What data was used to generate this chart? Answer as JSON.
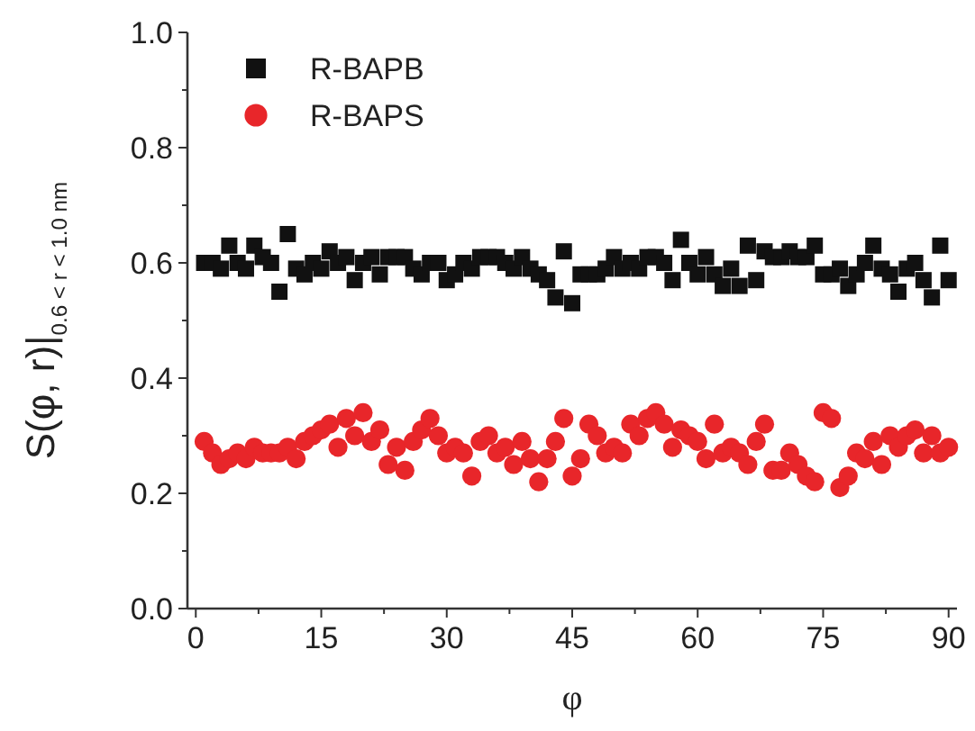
{
  "chart_data": {
    "type": "scatter",
    "xlabel": "φ",
    "ylabel": "S(φ, r)|$_{0.6 < r < 1.0 nm}$",
    "x": [
      1,
      2,
      3,
      4,
      5,
      6,
      7,
      8,
      9,
      10,
      11,
      12,
      13,
      14,
      15,
      16,
      17,
      18,
      19,
      20,
      21,
      22,
      23,
      24,
      25,
      26,
      27,
      28,
      29,
      30,
      31,
      32,
      33,
      34,
      35,
      36,
      37,
      38,
      39,
      40,
      41,
      42,
      43,
      44,
      45,
      46,
      47,
      48,
      49,
      50,
      51,
      52,
      53,
      54,
      55,
      56,
      57,
      58,
      59,
      60,
      61,
      62,
      63,
      64,
      65,
      66,
      67,
      68,
      69,
      70,
      71,
      72,
      73,
      74,
      75,
      76,
      77,
      78,
      79,
      80,
      81,
      82,
      83,
      84,
      85,
      86,
      87,
      88,
      89,
      90
    ],
    "series": [
      {
        "name": "R-BAPB",
        "color": "#111111",
        "marker": "square",
        "values": [
          0.6,
          0.6,
          0.59,
          0.63,
          0.6,
          0.59,
          0.63,
          0.61,
          0.6,
          0.55,
          0.65,
          0.59,
          0.58,
          0.6,
          0.59,
          0.62,
          0.6,
          0.61,
          0.57,
          0.6,
          0.61,
          0.58,
          0.61,
          0.61,
          0.61,
          0.59,
          0.58,
          0.6,
          0.6,
          0.57,
          0.58,
          0.6,
          0.59,
          0.61,
          0.61,
          0.61,
          0.6,
          0.59,
          0.61,
          0.59,
          0.58,
          0.57,
          0.54,
          0.62,
          0.53,
          0.58,
          0.58,
          0.58,
          0.59,
          0.61,
          0.59,
          0.6,
          0.59,
          0.61,
          0.61,
          0.6,
          0.57,
          0.64,
          0.6,
          0.58,
          0.61,
          0.58,
          0.56,
          0.59,
          0.56,
          0.63,
          0.57,
          0.62,
          0.61,
          0.61,
          0.62,
          0.61,
          0.61,
          0.63,
          0.58,
          0.58,
          0.59,
          0.56,
          0.58,
          0.6,
          0.63,
          0.59,
          0.58,
          0.55,
          0.59,
          0.6,
          0.57,
          0.54,
          0.63,
          0.57
        ]
      },
      {
        "name": "R-BAPS",
        "color": "#e8262a",
        "marker": "circle",
        "values": [
          0.29,
          0.27,
          0.25,
          0.26,
          0.27,
          0.26,
          0.28,
          0.27,
          0.27,
          0.27,
          0.28,
          0.26,
          0.29,
          0.3,
          0.31,
          0.32,
          0.28,
          0.33,
          0.3,
          0.34,
          0.29,
          0.31,
          0.25,
          0.28,
          0.24,
          0.29,
          0.31,
          0.33,
          0.3,
          0.27,
          0.28,
          0.27,
          0.23,
          0.29,
          0.3,
          0.27,
          0.28,
          0.25,
          0.29,
          0.26,
          0.22,
          0.26,
          0.29,
          0.33,
          0.23,
          0.26,
          0.32,
          0.3,
          0.27,
          0.28,
          0.27,
          0.32,
          0.3,
          0.33,
          0.34,
          0.32,
          0.28,
          0.31,
          0.3,
          0.29,
          0.26,
          0.32,
          0.27,
          0.28,
          0.27,
          0.25,
          0.29,
          0.32,
          0.24,
          0.24,
          0.27,
          0.25,
          0.23,
          0.22,
          0.34,
          0.33,
          0.21,
          0.23,
          0.27,
          0.26,
          0.29,
          0.25,
          0.3,
          0.28,
          0.3,
          0.31,
          0.27,
          0.3,
          0.27,
          0.28
        ]
      }
    ],
    "xlim": [
      -1,
      91
    ],
    "xticks": [
      0,
      {
        "value": 7.5,
        "label": null
      },
      15,
      {
        "value": 22.5,
        "label": null
      },
      30,
      {
        "value": 37.5,
        "label": null
      },
      45,
      {
        "value": 52.5,
        "label": null
      },
      60,
      {
        "value": 67.5,
        "label": null
      },
      75,
      {
        "value": 82.5,
        "label": null
      },
      90
    ],
    "ylim": [
      0,
      1
    ],
    "yticks": [
      {
        "value": 0,
        "label": "0.0"
      },
      {
        "value": 0.1,
        "label": null
      },
      {
        "value": 0.2,
        "label": "0.2"
      },
      {
        "value": 0.3,
        "label": null
      },
      {
        "value": 0.4,
        "label": "0.4"
      },
      {
        "value": 0.5,
        "label": null
      },
      {
        "value": 0.6,
        "label": "0.6"
      },
      {
        "value": 0.7,
        "label": null
      },
      {
        "value": 0.8,
        "label": "0.8"
      },
      {
        "value": 0.9,
        "label": null
      },
      {
        "value": 1,
        "label": "1.0"
      }
    ],
    "grid": false,
    "legend": "top left"
  }
}
